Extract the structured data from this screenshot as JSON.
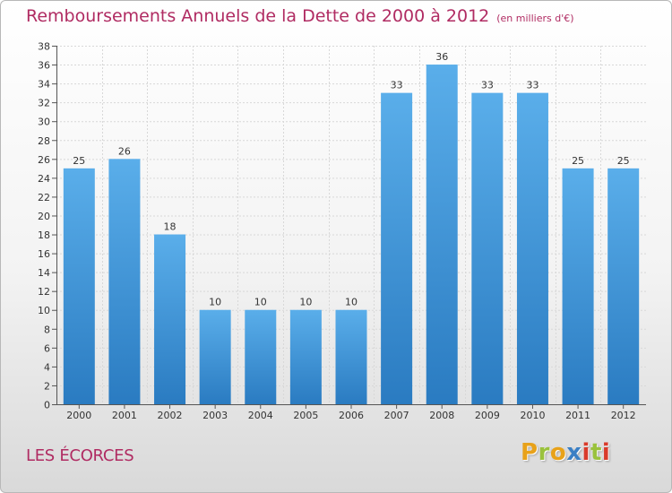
{
  "page": {
    "title": "Remboursements Annuels de la Dette de 2000 à 2012",
    "title_unit": "(en milliers d'€)",
    "commune": "LES ÉCORCES",
    "logo": "Proxiti",
    "colors": {
      "title": "#b02b62",
      "bar_top": "#5aaeea",
      "bar_bottom": "#2a7bc1",
      "logo_letters": [
        "#e8a21a",
        "#9ac23c",
        "#e8a21a",
        "#3b7fc4",
        "#d93b2b",
        "#9ac23c",
        "#d93b2b"
      ]
    }
  },
  "chart_data": {
    "type": "bar",
    "title": "Remboursements Annuels de la Dette de 2000 à 2012",
    "subtitle": "(en milliers d'€)",
    "xlabel": "",
    "ylabel": "",
    "categories": [
      "2000",
      "2001",
      "2002",
      "2003",
      "2004",
      "2005",
      "2006",
      "2007",
      "2008",
      "2009",
      "2010",
      "2011",
      "2012"
    ],
    "values": [
      25,
      26,
      18,
      10,
      10,
      10,
      10,
      33,
      36,
      33,
      33,
      25,
      25
    ],
    "ylim": [
      0,
      38
    ],
    "yticks": [
      0,
      2,
      4,
      6,
      8,
      10,
      12,
      14,
      16,
      18,
      20,
      22,
      24,
      26,
      28,
      30,
      32,
      34,
      36,
      38
    ],
    "grid": true,
    "legend": "none",
    "data_labels": true
  }
}
